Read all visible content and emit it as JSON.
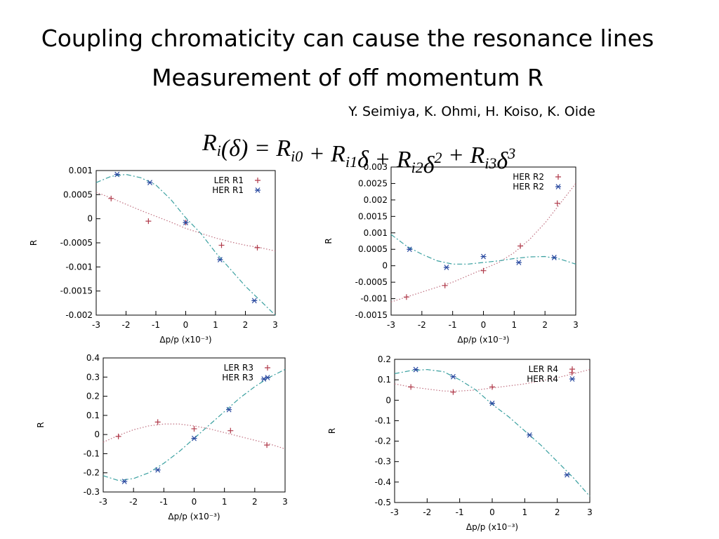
{
  "title": [
    "Coupling chromaticity can cause the resonance lines",
    "Measurement of off momentum R"
  ],
  "authors": "Y. Seimiya, K. Ohmi, H. Koiso, K. Oide",
  "equation": [
    {
      "text": "R",
      "sub": "i"
    },
    {
      "text": "(δ) = "
    },
    {
      "text": "R",
      "sub": "i0"
    },
    {
      "text": " + "
    },
    {
      "text": "R",
      "sub": "i1"
    },
    {
      "text": "δ + "
    },
    {
      "text": "R",
      "sub": "i2"
    },
    {
      "text": "δ",
      "sup": "2"
    },
    {
      "text": " + "
    },
    {
      "text": "R",
      "sub": "i3"
    },
    {
      "text": "δ",
      "sup": "3"
    }
  ],
  "chart_data": [
    {
      "type": "scatter",
      "x_label": "Δp/p (x10⁻³)",
      "y_label": "R",
      "xlim": [
        -3,
        3
      ],
      "xticks": [
        -3,
        -2,
        -1,
        0,
        1,
        2,
        3
      ],
      "ylim": [
        -0.002,
        0.001
      ],
      "yticks": [
        -0.002,
        -0.0015,
        -0.001,
        -0.0005,
        0,
        0.0005,
        0.001
      ],
      "legend": "top-right",
      "series": [
        {
          "name": "LER R1",
          "color": "#b03a4a",
          "marker": "plus",
          "x": [
            -2.5,
            -1.25,
            0,
            1.2,
            2.4
          ],
          "values": [
            0.00042,
            -5e-05,
            -8e-05,
            -0.00055,
            -0.0006
          ]
        },
        {
          "name": "HER R1",
          "color": "#2a4aa0",
          "marker": "star",
          "x": [
            -2.3,
            -1.2,
            0,
            1.15,
            2.3
          ],
          "values": [
            0.00092,
            0.00075,
            -8e-05,
            -0.00085,
            -0.0017
          ]
        }
      ],
      "fit_x": [
        -3,
        -2.5,
        -2,
        -1.5,
        -1,
        -0.5,
        0,
        0.5,
        1,
        1.5,
        2,
        2.5,
        3
      ],
      "fits": [
        {
          "color": "#c07080",
          "style": "dotted",
          "values": [
            0.00055,
            0.00043,
            0.0003,
            0.00017,
            5e-05,
            -7e-05,
            -0.0002,
            -0.0003,
            -0.0004,
            -0.00048,
            -0.00055,
            -0.0006,
            -0.00067
          ]
        },
        {
          "color": "#3aa0a0",
          "style": "dash-dot",
          "values": [
            0.00075,
            0.00088,
            0.00092,
            0.00085,
            0.0007,
            0.0004,
            2e-05,
            -0.0003,
            -0.0007,
            -0.00105,
            -0.0014,
            -0.0017,
            -0.002
          ]
        }
      ]
    },
    {
      "type": "scatter",
      "x_label": "Δp/p (x10⁻³)",
      "y_label": "R",
      "xlim": [
        -3,
        3
      ],
      "xticks": [
        -3,
        -2,
        -1,
        0,
        1,
        2,
        3
      ],
      "ylim": [
        -0.0015,
        0.003
      ],
      "yticks": [
        -0.0015,
        -0.001,
        -0.0005,
        0,
        0.0005,
        0.001,
        0.0015,
        0.002,
        0.0025,
        0.003
      ],
      "legend": "top-right",
      "series": [
        {
          "name": "HER R2",
          "color": "#b03a4a",
          "marker": "plus",
          "x": [
            -2.5,
            -1.25,
            0,
            1.2,
            2.4
          ],
          "values": [
            -0.00095,
            -0.0006,
            -0.00015,
            0.0006,
            0.0019
          ]
        },
        {
          "name": "HER R2",
          "color": "#2a4aa0",
          "marker": "star",
          "x": [
            -2.4,
            -1.2,
            0,
            1.15,
            2.3
          ],
          "values": [
            0.0005,
            -5e-05,
            0.00028,
            0.0001,
            0.00025
          ]
        }
      ],
      "fit_x": [
        -3,
        -2.5,
        -2,
        -1.5,
        -1,
        -0.5,
        0,
        0.5,
        1,
        1.5,
        2,
        2.5,
        3
      ],
      "fits": [
        {
          "color": "#c07080",
          "style": "dotted",
          "values": [
            -0.0011,
            -0.00095,
            -0.0008,
            -0.00065,
            -0.0005,
            -0.0003,
            -0.0001,
            0.0001,
            0.0004,
            0.0008,
            0.0013,
            0.0019,
            0.0025
          ]
        },
        {
          "color": "#3aa0a0",
          "style": "dash-dot",
          "values": [
            0.00095,
            0.0006,
            0.00035,
            0.00015,
            5e-05,
            5e-05,
            0.0001,
            0.00015,
            0.00022,
            0.00027,
            0.00028,
            0.0002,
            5e-05
          ]
        }
      ]
    },
    {
      "type": "scatter",
      "x_label": "Δp/p (x10⁻³)",
      "y_label": "R",
      "xlim": [
        -3,
        3
      ],
      "xticks": [
        -3,
        -2,
        -1,
        0,
        1,
        2,
        3
      ],
      "ylim": [
        -0.3,
        0.4
      ],
      "yticks": [
        -0.3,
        -0.2,
        -0.1,
        0,
        0.1,
        0.2,
        0.3,
        0.4
      ],
      "legend": "top-right",
      "series": [
        {
          "name": "LER R3",
          "color": "#b03a4a",
          "marker": "plus",
          "x": [
            -2.5,
            -1.2,
            0,
            1.2,
            2.4
          ],
          "values": [
            -0.01,
            0.065,
            0.03,
            0.02,
            -0.055
          ]
        },
        {
          "name": "HER R3",
          "color": "#2a4aa0",
          "marker": "star",
          "x": [
            -2.3,
            -1.2,
            0,
            1.15,
            2.3
          ],
          "values": [
            -0.245,
            -0.185,
            -0.02,
            0.13,
            0.29
          ]
        }
      ],
      "fit_x": [
        -3,
        -2.5,
        -2,
        -1.5,
        -1,
        -0.5,
        0,
        0.5,
        1,
        1.5,
        2,
        2.5,
        3
      ],
      "fits": [
        {
          "color": "#c07080",
          "style": "dotted",
          "values": [
            -0.04,
            -0.005,
            0.025,
            0.045,
            0.055,
            0.055,
            0.045,
            0.03,
            0.01,
            -0.01,
            -0.03,
            -0.05,
            -0.075
          ]
        },
        {
          "color": "#3aa0a0",
          "style": "dash-dot",
          "values": [
            -0.215,
            -0.24,
            -0.23,
            -0.2,
            -0.15,
            -0.09,
            -0.02,
            0.05,
            0.12,
            0.19,
            0.25,
            0.3,
            0.34
          ]
        }
      ]
    },
    {
      "type": "scatter",
      "x_label": "Δp/p (x10⁻³)",
      "y_label": "R",
      "xlim": [
        -3,
        3
      ],
      "xticks": [
        -3,
        -2,
        -1,
        0,
        1,
        2,
        3
      ],
      "ylim": [
        -0.5,
        0.2
      ],
      "yticks": [
        -0.5,
        -0.4,
        -0.3,
        -0.2,
        -0.1,
        0,
        0.1,
        0.2
      ],
      "legend": "top-right",
      "series": [
        {
          "name": "LER R4",
          "color": "#b03a4a",
          "marker": "plus",
          "x": [
            -2.5,
            -1.2,
            0,
            2.45
          ],
          "values": [
            0.065,
            0.04,
            0.065,
            0.135
          ]
        },
        {
          "name": "HER R4",
          "color": "#2a4aa0",
          "marker": "star",
          "x": [
            -2.35,
            -1.2,
            0,
            1.15,
            2.3
          ],
          "values": [
            0.15,
            0.115,
            -0.015,
            -0.17,
            -0.365
          ]
        }
      ],
      "fit_x": [
        -3,
        -2.5,
        -2,
        -1.5,
        -1,
        -0.5,
        0,
        0.5,
        1,
        1.5,
        2,
        2.5,
        3
      ],
      "fits": [
        {
          "color": "#c07080",
          "style": "dotted",
          "values": [
            0.08,
            0.065,
            0.055,
            0.045,
            0.045,
            0.05,
            0.06,
            0.07,
            0.08,
            0.095,
            0.11,
            0.13,
            0.15
          ]
        },
        {
          "color": "#3aa0a0",
          "style": "dash-dot",
          "values": [
            0.13,
            0.145,
            0.15,
            0.14,
            0.1,
            0.05,
            -0.02,
            -0.08,
            -0.15,
            -0.22,
            -0.3,
            -0.38,
            -0.47
          ]
        }
      ]
    }
  ]
}
